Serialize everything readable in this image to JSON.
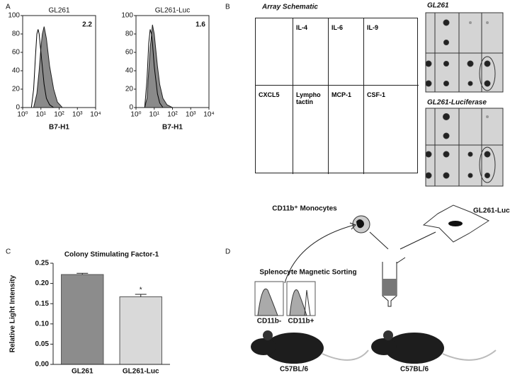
{
  "panel_labels": [
    "A",
    "B",
    "C",
    "D"
  ],
  "chart_data": [
    {
      "type": "area",
      "title": "GL261",
      "xlabel": "B7-H1",
      "annotation": 2.2,
      "log_x": true,
      "xlim": [
        1,
        10000
      ],
      "xticks": [
        {
          "value": 1,
          "label": "10⁰"
        },
        {
          "value": 10,
          "label": "10¹"
        },
        {
          "value": 100,
          "label": "10²"
        },
        {
          "value": 1000,
          "label": "10³"
        },
        {
          "value": 10000,
          "label": "10⁴"
        }
      ],
      "ylim": [
        0,
        100
      ],
      "yticks": [
        0,
        20,
        40,
        60,
        80,
        100
      ],
      "series": [
        {
          "color": "#8a8a8a",
          "filled": true,
          "x": [
            4,
            6,
            8,
            10,
            12,
            15,
            20,
            30,
            50,
            80,
            150
          ],
          "values": [
            0,
            15,
            40,
            65,
            80,
            88,
            75,
            45,
            20,
            6,
            0
          ]
        },
        {
          "color": "#000000",
          "filled": false,
          "x": [
            3,
            4,
            5,
            6,
            7,
            8,
            10,
            15,
            20,
            30,
            50
          ],
          "values": [
            0,
            20,
            55,
            80,
            85,
            80,
            60,
            25,
            10,
            3,
            0
          ]
        }
      ]
    },
    {
      "type": "area",
      "title": "GL261-Luc",
      "xlabel": "B7-H1",
      "annotation": 1.6,
      "log_x": true,
      "xlim": [
        1,
        10000
      ],
      "xticks": [
        {
          "value": 1,
          "label": "10⁰"
        },
        {
          "value": 10,
          "label": "10¹"
        },
        {
          "value": 100,
          "label": "10²"
        },
        {
          "value": 1000,
          "label": "10³"
        },
        {
          "value": 10000,
          "label": "10⁴"
        }
      ],
      "ylim": [
        0,
        100
      ],
      "yticks": [
        0,
        20,
        40,
        60,
        80,
        100
      ],
      "series": [
        {
          "color": "#8a8a8a",
          "filled": true,
          "x": [
            3,
            4,
            5,
            6,
            8,
            10,
            15,
            20,
            30,
            50,
            100
          ],
          "values": [
            0,
            10,
            40,
            65,
            90,
            80,
            45,
            25,
            10,
            3,
            0
          ]
        },
        {
          "color": "#000000",
          "filled": false,
          "x": [
            3,
            4,
            5,
            6,
            7,
            8,
            10,
            15,
            20,
            30
          ],
          "values": [
            0,
            30,
            70,
            85,
            80,
            70,
            45,
            15,
            5,
            0
          ]
        }
      ]
    },
    {
      "type": "bar",
      "title": "Colony Stimulating Factor-1",
      "ylabel": "Relative Light Intensity",
      "categories": [
        "GL261",
        "GL261-Luc"
      ],
      "values": [
        0.222,
        0.167
      ],
      "errors": [
        0.003,
        0.006
      ],
      "colors": [
        "#8c8c8c",
        "#d9d9d9"
      ],
      "annotation": "*",
      "ylim": [
        0,
        0.25
      ],
      "yticks": [
        {
          "value": 0,
          "label": "0.00"
        },
        {
          "value": 0.05,
          "label": "0.05"
        },
        {
          "value": 0.1,
          "label": "0.10"
        },
        {
          "value": 0.15,
          "label": "0.15"
        },
        {
          "value": 0.2,
          "label": "0.20"
        },
        {
          "value": 0.25,
          "label": "0.25"
        }
      ]
    }
  ],
  "array_schematic": {
    "title": "Array Schematic",
    "cells": [
      [
        null,
        "IL-4",
        "IL-6",
        "IL-9"
      ],
      [
        "CXCL5",
        "Lympho tactin",
        "MCP-1",
        "CSF-1"
      ]
    ]
  },
  "arrays": [
    {
      "title": "GL261"
    },
    {
      "title": "GL261-Luciferase"
    }
  ],
  "diagram": {
    "monocytes": "CD11b⁺ Monocytes",
    "tumor": "GL261-Luc",
    "sorting": "Splenocyte Magnetic Sorting",
    "negative": "CD11b-",
    "positive": "CD11b+",
    "mouse_left": "C57BL/6",
    "mouse_right": "C57BL/6"
  }
}
